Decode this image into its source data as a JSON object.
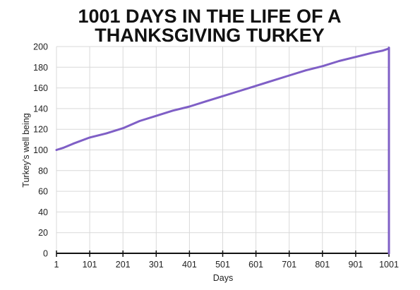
{
  "chart_data": {
    "type": "line",
    "title_lines": [
      "1001 DAYS IN THE LIFE OF A",
      "THANKSGIVING TURKEY"
    ],
    "xlabel": "Days",
    "ylabel": "Turkey's well being",
    "xlim": [
      1,
      1001
    ],
    "ylim": [
      0,
      200
    ],
    "x_ticks": [
      "1",
      "101",
      "201",
      "301",
      "401",
      "501",
      "601",
      "701",
      "801",
      "901",
      "1001"
    ],
    "y_ticks": [
      "0",
      "20",
      "40",
      "60",
      "80",
      "100",
      "120",
      "140",
      "160",
      "180",
      "200"
    ],
    "grid": true,
    "legend": "none",
    "line_color": "#7f5fc6",
    "series": [
      {
        "x": [
          1,
          21,
          51,
          101,
          151,
          201,
          251,
          301,
          351,
          401,
          451,
          501,
          551,
          601,
          651,
          701,
          751,
          801,
          851,
          901,
          951,
          981,
          1000,
          1001,
          1001
        ],
        "y": [
          100,
          102,
          106,
          112,
          116,
          121,
          128,
          133,
          138,
          142,
          147,
          152,
          157,
          162,
          167,
          172,
          177,
          181,
          186,
          190,
          194,
          196,
          198,
          199,
          0
        ]
      }
    ]
  }
}
